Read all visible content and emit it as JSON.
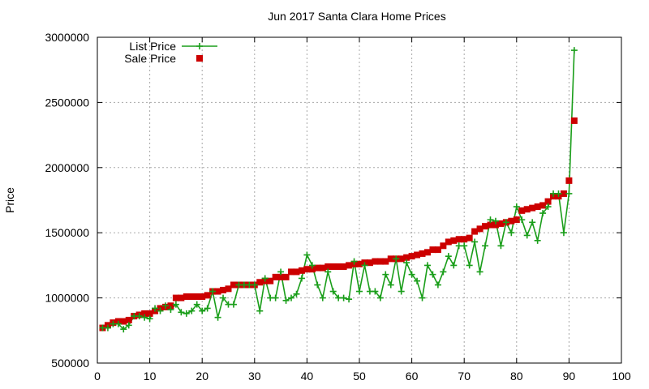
{
  "chart_data": {
    "type": "line",
    "title": "Jun 2017 Santa Clara Home Prices",
    "xlabel": "",
    "ylabel": "Price",
    "xlim": [
      0,
      100
    ],
    "ylim": [
      500000,
      3000000
    ],
    "xticks": [
      0,
      10,
      20,
      30,
      40,
      50,
      60,
      70,
      80,
      90,
      100
    ],
    "yticks": [
      500000,
      1000000,
      1500000,
      2000000,
      2500000,
      3000000
    ],
    "grid": true,
    "legend_position": "top-left",
    "x": [
      1,
      2,
      3,
      4,
      5,
      6,
      7,
      8,
      9,
      10,
      11,
      12,
      13,
      14,
      15,
      16,
      17,
      18,
      19,
      20,
      21,
      22,
      23,
      24,
      25,
      26,
      27,
      28,
      29,
      30,
      31,
      32,
      33,
      34,
      35,
      36,
      37,
      38,
      39,
      40,
      41,
      42,
      43,
      44,
      45,
      46,
      47,
      48,
      49,
      50,
      51,
      52,
      53,
      54,
      55,
      56,
      57,
      58,
      59,
      60,
      61,
      62,
      63,
      64,
      65,
      66,
      67,
      68,
      69,
      70,
      71,
      72,
      73,
      74,
      75,
      76,
      77,
      78,
      79,
      80,
      81,
      82,
      83,
      84,
      85,
      86,
      87,
      88,
      89,
      90,
      91
    ],
    "series": [
      {
        "name": "List Price",
        "color": "#1a9e1a",
        "marker": "plus",
        "values": [
          770000,
          770000,
          800000,
          800000,
          760000,
          790000,
          860000,
          860000,
          850000,
          840000,
          920000,
          900000,
          940000,
          910000,
          950000,
          890000,
          880000,
          900000,
          950000,
          900000,
          920000,
          1050000,
          850000,
          1000000,
          950000,
          950000,
          1100000,
          1100000,
          1100000,
          1100000,
          900000,
          1150000,
          1000000,
          1000000,
          1200000,
          980000,
          1000000,
          1030000,
          1150000,
          1330000,
          1250000,
          1100000,
          1000000,
          1200000,
          1050000,
          1000000,
          1000000,
          990000,
          1280000,
          1050000,
          1250000,
          1050000,
          1050000,
          1000000,
          1180000,
          1100000,
          1300000,
          1050000,
          1270000,
          1180000,
          1130000,
          1000000,
          1250000,
          1180000,
          1100000,
          1200000,
          1320000,
          1250000,
          1400000,
          1400000,
          1250000,
          1430000,
          1200000,
          1400000,
          1600000,
          1590000,
          1400000,
          1580000,
          1500000,
          1700000,
          1600000,
          1480000,
          1580000,
          1440000,
          1650000,
          1700000,
          1800000,
          1800000,
          1500000,
          1800000,
          2900000
        ]
      },
      {
        "name": "Sale Price",
        "color": "#cc0000",
        "marker": "square",
        "values": [
          770000,
          790000,
          810000,
          820000,
          820000,
          830000,
          860000,
          870000,
          880000,
          880000,
          900000,
          920000,
          930000,
          940000,
          1000000,
          1000000,
          1010000,
          1010000,
          1010000,
          1010000,
          1020000,
          1050000,
          1050000,
          1060000,
          1070000,
          1100000,
          1100000,
          1100000,
          1100000,
          1100000,
          1120000,
          1130000,
          1130000,
          1160000,
          1160000,
          1160000,
          1200000,
          1200000,
          1210000,
          1220000,
          1220000,
          1230000,
          1230000,
          1240000,
          1240000,
          1240000,
          1240000,
          1250000,
          1260000,
          1260000,
          1270000,
          1270000,
          1280000,
          1280000,
          1280000,
          1300000,
          1300000,
          1300000,
          1310000,
          1320000,
          1330000,
          1340000,
          1350000,
          1370000,
          1370000,
          1400000,
          1430000,
          1440000,
          1450000,
          1450000,
          1460000,
          1510000,
          1530000,
          1550000,
          1560000,
          1560000,
          1570000,
          1580000,
          1590000,
          1600000,
          1670000,
          1680000,
          1690000,
          1700000,
          1710000,
          1740000,
          1780000,
          1780000,
          1800000,
          1900000,
          2360000
        ]
      }
    ]
  }
}
